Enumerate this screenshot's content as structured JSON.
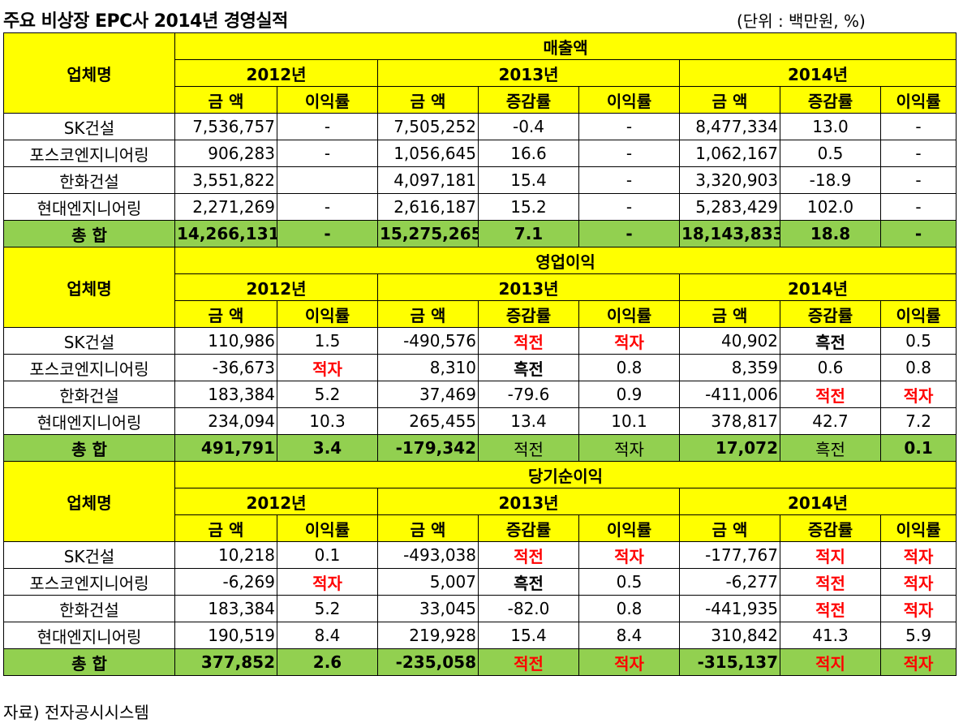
{
  "title": "주요 비상장 EPC사 2014년 경영실적",
  "unit": "(단위 : 백만원, %)",
  "source": "자료) 전자공시시스템",
  "colors": {
    "header_yellow": "#ffff00",
    "total_green": "#92d050",
    "negative_red": "#ff0000"
  },
  "company_header": "업체명",
  "years": {
    "y2012": "2012년",
    "y2013": "2013년",
    "y2014": "2014년"
  },
  "col_labels": {
    "amount": "금 액",
    "change": "증감률",
    "margin": "이익률"
  },
  "sections": [
    {
      "title": "매출액",
      "rows": [
        {
          "company": "SK건설",
          "a12": "7,536,757",
          "m12": "-",
          "a13": "7,505,252",
          "c13": "-0.4",
          "m13": "-",
          "a14": "8,477,334",
          "c14": "13.0",
          "m14": "-"
        },
        {
          "company": "포스코엔지니어링",
          "a12": "906,283",
          "m12": "-",
          "a13": "1,056,645",
          "c13": "16.6",
          "m13": "-",
          "a14": "1,062,167",
          "c14": "0.5",
          "m14": "-"
        },
        {
          "company": "한화건설",
          "a12": "3,551,822",
          "m12": "",
          "a13": "4,097,181",
          "c13": "15.4",
          "m13": "-",
          "a14": "3,320,903",
          "c14": "-18.9",
          "m14": "-"
        },
        {
          "company": "현대엔지니어링",
          "a12": "2,271,269",
          "m12": "-",
          "a13": "2,616,187",
          "c13": "15.2",
          "m13": "-",
          "a14": "5,283,429",
          "c14": "102.0",
          "m14": "-"
        }
      ],
      "total": {
        "company": "총 합",
        "a12": "14,266,131",
        "m12": "-",
        "a13": "15,275,265",
        "c13": "7.1",
        "m13": "-",
        "a14": "18,143,833",
        "c14": "18.8",
        "m14": "-"
      }
    },
    {
      "title": "영업이익",
      "rows": [
        {
          "company": "SK건설",
          "a12": "110,986",
          "m12": "1.5",
          "a13": "-490,576",
          "c13": "적전",
          "m13": "적자",
          "a14": "40,902",
          "c14": "흑전",
          "m14": "0.5"
        },
        {
          "company": "포스코엔지니어링",
          "a12": "-36,673",
          "m12": "적자",
          "a13": "8,310",
          "c13": "흑전",
          "m13": "0.8",
          "a14": "8,359",
          "c14": "0.6",
          "m14": "0.8"
        },
        {
          "company": "한화건설",
          "a12": "183,384",
          "m12": "5.2",
          "a13": "37,469",
          "c13": "-79.6",
          "m13": "0.9",
          "a14": "-411,006",
          "c14": "적전",
          "m14": "적자"
        },
        {
          "company": "현대엔지니어링",
          "a12": "234,094",
          "m12": "10.3",
          "a13": "265,455",
          "c13": "13.4",
          "m13": "10.1",
          "a14": "378,817",
          "c14": "42.7",
          "m14": "7.2"
        }
      ],
      "total": {
        "company": "총 합",
        "a12": "491,791",
        "m12": "3.4",
        "a13": "-179,342",
        "c13": "적전",
        "m13": "적자",
        "a14": "17,072",
        "c14": "흑전",
        "m14": "0.1"
      }
    },
    {
      "title": "당기순이익",
      "rows": [
        {
          "company": "SK건설",
          "a12": "10,218",
          "m12": "0.1",
          "a13": "-493,038",
          "c13": "적전",
          "m13": "적자",
          "a14": "-177,767",
          "c14": "적지",
          "m14": "적자"
        },
        {
          "company": "포스코엔지니어링",
          "a12": "-6,269",
          "m12": "적자",
          "a13": "5,007",
          "c13": "흑전",
          "m13": "0.5",
          "a14": "-6,277",
          "c14": "적전",
          "m14": "적자"
        },
        {
          "company": "한화건설",
          "a12": "183,384",
          "m12": "5.2",
          "a13": "33,045",
          "c13": "-82.0",
          "m13": "0.8",
          "a14": "-441,935",
          "c14": "적전",
          "m14": "적자"
        },
        {
          "company": "현대엔지니어링",
          "a12": "190,519",
          "m12": "8.4",
          "a13": "219,928",
          "c13": "15.4",
          "m13": "8.4",
          "a14": "310,842",
          "c14": "41.3",
          "m14": "5.9"
        }
      ],
      "total": {
        "company": "총 합",
        "a12": "377,852",
        "m12": "2.6",
        "a13": "-235,058",
        "c13": "적전",
        "m13": "적자",
        "a14": "-315,137",
        "c14": "적지",
        "m14": "적자"
      }
    }
  ]
}
